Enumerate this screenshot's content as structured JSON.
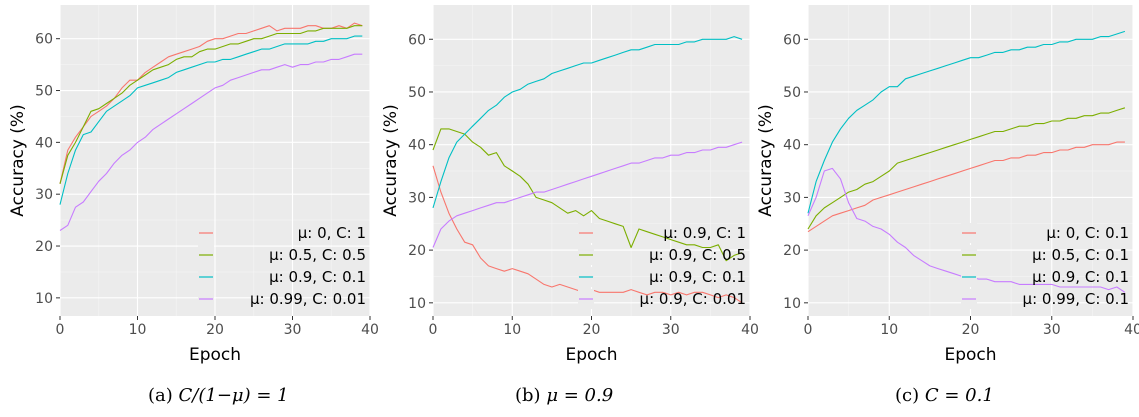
{
  "colors": {
    "panel_bg": "#ebebeb",
    "grid_major": "#ffffff",
    "grid_minor": "#f5f5f5",
    "series": [
      "#F8766D",
      "#7CAE00",
      "#00BFC4",
      "#C77CFF"
    ]
  },
  "chart_data": [
    {
      "type": "line",
      "caption_prefix": "(a)",
      "caption_math": "C/(1−μ) = 1",
      "xlabel": "Epoch",
      "ylabel": "Accuracy (%)",
      "xlim": [
        0,
        40
      ],
      "ylim": [
        6.5,
        66.5
      ],
      "xticks": [
        0,
        10,
        20,
        30,
        40
      ],
      "yticks": [
        10,
        20,
        30,
        40,
        50,
        60
      ],
      "grid": true,
      "legend_position": "bottom-right",
      "series": [
        {
          "name": "μ: 0, C: 1",
          "values": [
            32,
            38.5,
            41,
            43,
            45,
            46,
            47,
            48.5,
            50.5,
            52,
            52,
            53.5,
            54.5,
            55.5,
            56.5,
            57,
            57.5,
            58,
            58.5,
            59.5,
            60,
            60,
            60.5,
            61,
            61,
            61.5,
            62,
            62.5,
            61.5,
            62,
            62,
            62,
            62.5,
            62.5,
            62,
            62,
            62.5,
            62,
            63,
            62.5
          ]
        },
        {
          "name": "μ: 0.5, C: 0.5",
          "values": [
            32,
            37.5,
            40,
            43,
            46,
            46.5,
            47.5,
            48.5,
            49.5,
            51,
            52,
            53,
            54,
            54.5,
            55,
            56,
            56.5,
            56.5,
            57.5,
            58,
            58,
            58.5,
            59,
            59,
            59.5,
            60,
            60,
            60.5,
            61,
            61,
            61,
            61,
            61.5,
            61.5,
            62,
            62,
            62,
            62,
            62.5,
            62.5
          ]
        },
        {
          "name": "μ: 0.9, C: 0.1",
          "values": [
            28,
            34,
            38.5,
            41.5,
            42,
            44,
            46,
            47,
            48,
            49,
            50.5,
            51,
            51.5,
            52,
            52.5,
            53.5,
            54,
            54.5,
            55,
            55.5,
            55.5,
            56,
            56,
            56.5,
            57,
            57.5,
            58,
            58,
            58.5,
            59,
            59,
            59,
            59,
            59.5,
            59.5,
            60,
            60,
            60,
            60.5,
            60.5
          ]
        },
        {
          "name": "μ: 0.99, C: 0.01",
          "values": [
            23,
            24,
            27.5,
            28.5,
            30.5,
            32.5,
            34,
            36,
            37.5,
            38.5,
            40,
            41,
            42.5,
            43.5,
            44.5,
            45.5,
            46.5,
            47.5,
            48.5,
            49.5,
            50.5,
            51,
            52,
            52.5,
            53,
            53.5,
            54,
            54,
            54.5,
            55,
            54.5,
            55,
            55,
            55.5,
            55.5,
            56,
            56,
            56.5,
            57,
            57
          ]
        }
      ]
    },
    {
      "type": "line",
      "caption_prefix": "(b)",
      "caption_math": "μ = 0.9",
      "xlabel": "Epoch",
      "ylabel": "Accuracy (%)",
      "xlim": [
        0,
        40
      ],
      "ylim": [
        7.5,
        66.5
      ],
      "xticks": [
        0,
        10,
        20,
        30,
        40
      ],
      "yticks": [
        10,
        20,
        30,
        40,
        50,
        60
      ],
      "grid": true,
      "legend_position": "bottom-right",
      "series": [
        {
          "name": "μ: 0.9, C: 1",
          "values": [
            36,
            31,
            27,
            24,
            21.5,
            21,
            18.5,
            17,
            16.5,
            16,
            16.5,
            16,
            15.5,
            14.5,
            13.5,
            13,
            13.5,
            13,
            12.5,
            12,
            12.5,
            12,
            12,
            12,
            12,
            12.5,
            12,
            11.5,
            12,
            12,
            11.5,
            12,
            11.5,
            12,
            12,
            11.5,
            11,
            11.5,
            11,
            10
          ]
        },
        {
          "name": "μ: 0.9, C: 0.5",
          "values": [
            39,
            43,
            43,
            42.5,
            42,
            40.5,
            39.5,
            38,
            38.5,
            36,
            35,
            34,
            32.5,
            30,
            29.5,
            29,
            28,
            27,
            27.5,
            26.5,
            27.5,
            26,
            25.5,
            25,
            24.5,
            20.5,
            24,
            23.5,
            23,
            22.5,
            22,
            21.5,
            21,
            21,
            20.5,
            20.5,
            21,
            18,
            19,
            19.5
          ]
        },
        {
          "name": "μ: 0.9, C: 0.1",
          "values": [
            28,
            33,
            37.5,
            40.5,
            42,
            43.5,
            45,
            46.5,
            47.5,
            49,
            50,
            50.5,
            51.5,
            52,
            52.5,
            53.5,
            54,
            54.5,
            55,
            55.5,
            55.5,
            56,
            56.5,
            57,
            57.5,
            58,
            58,
            58.5,
            59,
            59,
            59,
            59,
            59.5,
            59.5,
            60,
            60,
            60,
            60,
            60.5,
            60
          ]
        },
        {
          "name": "μ: 0.9, C: 0.01",
          "values": [
            20.5,
            24,
            25.5,
            26.5,
            27,
            27.5,
            28,
            28.5,
            29,
            29,
            29.5,
            30,
            30.5,
            31,
            31,
            31.5,
            32,
            32.5,
            33,
            33.5,
            34,
            34.5,
            35,
            35.5,
            36,
            36.5,
            36.5,
            37,
            37.5,
            37.5,
            38,
            38,
            38.5,
            38.5,
            39,
            39,
            39.5,
            39.5,
            40,
            40.5
          ]
        }
      ]
    },
    {
      "type": "line",
      "caption_prefix": "(c)",
      "caption_math": "C = 0.1",
      "xlabel": "Epoch",
      "ylabel": "Accuracy (%)",
      "xlim": [
        0,
        40
      ],
      "ylim": [
        7.5,
        66.5
      ],
      "xticks": [
        0,
        10,
        20,
        30,
        40
      ],
      "yticks": [
        10,
        20,
        30,
        40,
        50,
        60
      ],
      "grid": true,
      "legend_position": "bottom-right",
      "series": [
        {
          "name": "μ: 0, C: 0.1",
          "values": [
            23.5,
            24.5,
            25.5,
            26.5,
            27,
            27.5,
            28,
            28.5,
            29.5,
            30,
            30.5,
            31,
            31.5,
            32,
            32.5,
            33,
            33.5,
            34,
            34.5,
            35,
            35.5,
            36,
            36.5,
            37,
            37,
            37.5,
            37.5,
            38,
            38,
            38.5,
            38.5,
            39,
            39,
            39.5,
            39.5,
            40,
            40,
            40,
            40.5,
            40.5
          ]
        },
        {
          "name": "μ: 0.5, C: 0.1",
          "values": [
            24,
            26.5,
            28,
            29,
            30,
            31,
            31.5,
            32.5,
            33,
            34,
            35,
            36.5,
            37,
            37.5,
            38,
            38.5,
            39,
            39.5,
            40,
            40.5,
            41,
            41.5,
            42,
            42.5,
            42.5,
            43,
            43.5,
            43.5,
            44,
            44,
            44.5,
            44.5,
            45,
            45,
            45.5,
            45.5,
            46,
            46,
            46.5,
            47
          ]
        },
        {
          "name": "μ: 0.9, C: 0.1",
          "values": [
            27,
            33,
            37,
            40.5,
            43,
            45,
            46.5,
            47.5,
            48.5,
            50,
            51,
            51,
            52.5,
            53,
            53.5,
            54,
            54.5,
            55,
            55.5,
            56,
            56.5,
            56.5,
            57,
            57.5,
            57.5,
            58,
            58,
            58.5,
            58.5,
            59,
            59,
            59.5,
            59.5,
            60,
            60,
            60,
            60.5,
            60.5,
            61,
            61.5
          ]
        },
        {
          "name": "μ: 0.99, C: 0.1",
          "values": [
            26.5,
            30,
            35,
            35.5,
            33.5,
            29,
            26,
            25.5,
            24.5,
            24,
            23,
            21.5,
            20.5,
            19,
            18,
            17,
            16.5,
            16,
            15.5,
            15,
            15,
            14.5,
            14.5,
            14,
            14,
            14,
            13.5,
            13.5,
            13.5,
            13.5,
            13.5,
            13,
            13,
            13,
            13,
            13,
            13,
            12.5,
            13,
            12
          ]
        }
      ]
    }
  ]
}
